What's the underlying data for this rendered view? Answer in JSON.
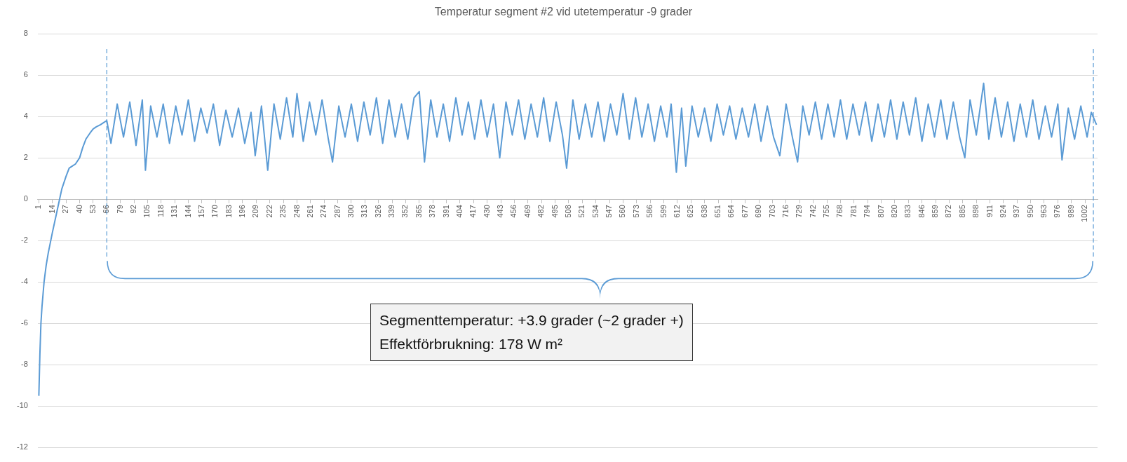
{
  "chart_data": {
    "type": "line",
    "title": "Temperatur segment #2 vid utetemperatur -9 grader",
    "series": [
      {
        "color": "#5b9bd5",
        "x": [
          1,
          2,
          3,
          4,
          5,
          6,
          8,
          10,
          12,
          14,
          17,
          20,
          23,
          27,
          30,
          33,
          36,
          40,
          43,
          46,
          50,
          53,
          56,
          60,
          63,
          66,
          70,
          76,
          82,
          88,
          94,
          100,
          103,
          108,
          114,
          120,
          126,
          132,
          138,
          144,
          150,
          156,
          162,
          168,
          174,
          180,
          186,
          192,
          198,
          204,
          208,
          214,
          220,
          226,
          232,
          238,
          244,
          248,
          254,
          260,
          266,
          272,
          278,
          282,
          288,
          294,
          300,
          306,
          312,
          318,
          324,
          330,
          336,
          342,
          348,
          354,
          360,
          365,
          370,
          376,
          382,
          388,
          394,
          400,
          406,
          412,
          418,
          424,
          430,
          436,
          442,
          448,
          454,
          460,
          466,
          472,
          478,
          484,
          490,
          496,
          502,
          506,
          512,
          518,
          524,
          530,
          536,
          542,
          548,
          554,
          560,
          566,
          572,
          578,
          584,
          590,
          596,
          602,
          606,
          611,
          616,
          620,
          626,
          632,
          638,
          644,
          650,
          656,
          662,
          668,
          674,
          680,
          686,
          692,
          698,
          704,
          710,
          716,
          722,
          727,
          732,
          738,
          744,
          750,
          756,
          762,
          768,
          774,
          780,
          786,
          792,
          798,
          804,
          810,
          816,
          822,
          828,
          834,
          840,
          846,
          852,
          858,
          864,
          870,
          876,
          882,
          887,
          892,
          898,
          905,
          910,
          916,
          922,
          928,
          934,
          940,
          946,
          952,
          958,
          964,
          970,
          976,
          980,
          986,
          992,
          998,
          1004,
          1008,
          1013
        ],
        "values": [
          -9.5,
          -7.5,
          -6,
          -5.2,
          -4.6,
          -4,
          -3.2,
          -2.6,
          -2.1,
          -1.6,
          -0.9,
          -0.2,
          0.5,
          1.1,
          1.5,
          1.6,
          1.7,
          2.0,
          2.5,
          2.9,
          3.2,
          3.4,
          3.5,
          3.6,
          3.7,
          3.8,
          2.7,
          4.6,
          3.0,
          4.7,
          2.6,
          4.8,
          1.4,
          4.5,
          3.0,
          4.6,
          2.7,
          4.5,
          3.1,
          4.8,
          2.8,
          4.4,
          3.2,
          4.6,
          2.6,
          4.3,
          3.0,
          4.4,
          2.7,
          4.2,
          2.1,
          4.5,
          1.4,
          4.6,
          2.9,
          4.9,
          3.0,
          5.1,
          2.8,
          4.7,
          3.1,
          4.8,
          2.9,
          1.8,
          4.5,
          3.0,
          4.6,
          2.8,
          4.7,
          3.1,
          4.9,
          2.7,
          4.8,
          3.0,
          4.6,
          2.9,
          4.9,
          5.2,
          1.8,
          4.8,
          3.0,
          4.6,
          2.8,
          4.9,
          3.1,
          4.7,
          2.9,
          4.8,
          3.0,
          4.6,
          2.0,
          4.7,
          3.1,
          4.8,
          2.9,
          4.6,
          3.0,
          4.9,
          2.8,
          4.7,
          3.1,
          1.5,
          4.8,
          2.9,
          4.6,
          3.0,
          4.7,
          2.8,
          4.6,
          3.1,
          5.1,
          2.9,
          4.9,
          3.0,
          4.6,
          2.8,
          4.5,
          3.0,
          4.6,
          1.3,
          4.4,
          1.6,
          4.5,
          3.0,
          4.4,
          2.8,
          4.6,
          3.1,
          4.5,
          2.9,
          4.4,
          3.0,
          4.6,
          2.8,
          4.5,
          3.0,
          2.1,
          4.6,
          3.0,
          1.8,
          4.5,
          3.1,
          4.7,
          2.9,
          4.6,
          3.0,
          4.8,
          2.9,
          4.6,
          3.1,
          4.7,
          2.8,
          4.6,
          3.0,
          4.8,
          2.9,
          4.7,
          3.1,
          4.9,
          2.8,
          4.6,
          3.0,
          4.8,
          2.9,
          4.7,
          3.0,
          2.0,
          4.8,
          3.1,
          5.6,
          2.9,
          4.9,
          3.0,
          4.7,
          2.8,
          4.6,
          3.0,
          4.8,
          2.9,
          4.5,
          3.0,
          4.6,
          1.9,
          4.4,
          2.9,
          4.5,
          3.0,
          4.2,
          3.6
        ]
      }
    ],
    "xlim": [
      0,
      1014
    ],
    "xticks": [
      1,
      14,
      27,
      40,
      53,
      66,
      79,
      92,
      105,
      118,
      131,
      144,
      157,
      170,
      183,
      196,
      209,
      222,
      235,
      248,
      261,
      274,
      287,
      300,
      313,
      326,
      339,
      352,
      365,
      378,
      391,
      404,
      417,
      430,
      443,
      456,
      469,
      482,
      495,
      508,
      521,
      534,
      547,
      560,
      573,
      586,
      599,
      612,
      625,
      638,
      651,
      664,
      677,
      690,
      703,
      716,
      729,
      742,
      755,
      768,
      781,
      794,
      807,
      820,
      833,
      846,
      859,
      872,
      885,
      898,
      911,
      924,
      937,
      950,
      963,
      976,
      989,
      1002
    ],
    "ylim": [
      -12,
      8
    ],
    "yticks": [
      -12,
      -10,
      -8,
      -6,
      -4,
      -2,
      0,
      2,
      4,
      6,
      8
    ],
    "grid": "y",
    "marker": "none",
    "line_style": "solid",
    "ref_lines": [
      {
        "axis": "x",
        "value": 66,
        "line_style": "dashed",
        "color": "#5b9bd5"
      },
      {
        "axis": "x",
        "value": 1010,
        "line_style": "dashed",
        "color": "#5b9bd5"
      }
    ],
    "annotations": [
      "Segmenttemperatur: +3.9 grader (~2 grader +)\nEffektförbrukning: 178 W m²"
    ]
  }
}
